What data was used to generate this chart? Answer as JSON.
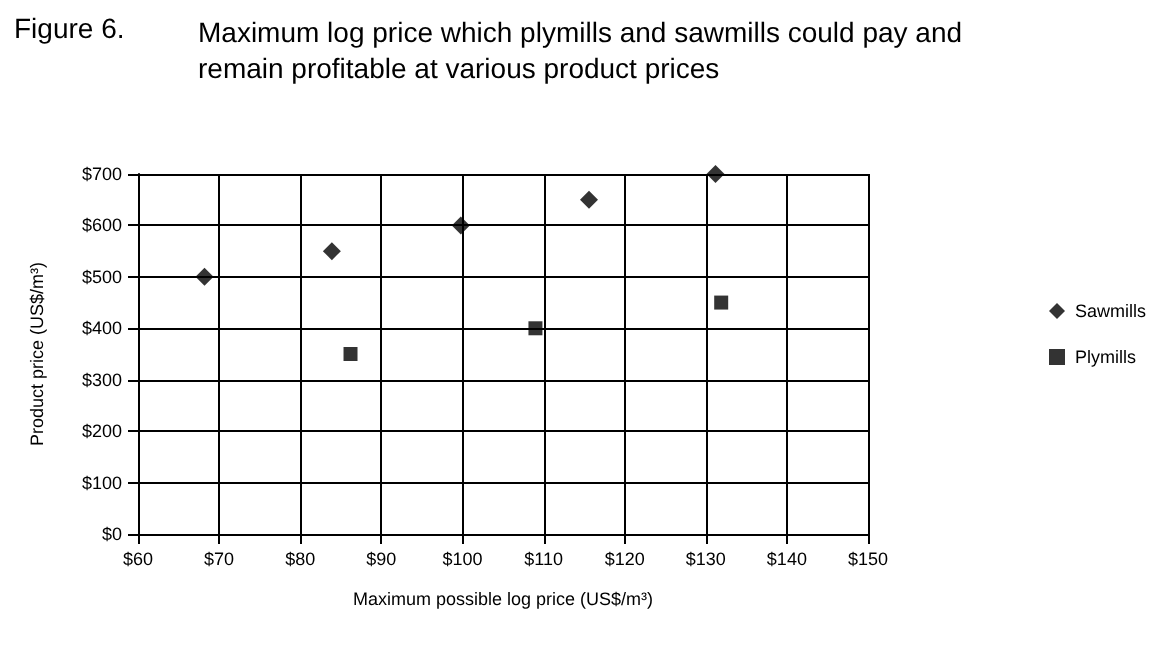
{
  "chart_data": {
    "type": "scatter",
    "title": "Figure 6.",
    "subtitle": "Maximum log price which plymills and sawmills could pay and remain profitable at various product prices",
    "xlabel": "Maximum possible log price (US$/m³)",
    "ylabel": "Product price (US$/m³)",
    "series": [
      {
        "name": "Sawmills",
        "color": "#000000",
        "marker": "diamond",
        "x": [
          68.2,
          83.9,
          99.8,
          115.6,
          131.2
        ],
        "values": [
          500,
          550,
          600,
          650,
          700
        ]
      },
      {
        "name": "Plymills",
        "color": "#000000",
        "marker": "square",
        "x": [
          86.2,
          109.0,
          131.9
        ],
        "values": [
          350,
          400,
          450
        ]
      }
    ],
    "xlim": [
      60,
      150
    ],
    "xticks": [
      {
        "value": 60,
        "label": "$60"
      },
      {
        "value": 70,
        "label": "$70"
      },
      {
        "value": 80,
        "label": "$80"
      },
      {
        "value": 90,
        "label": "$90"
      },
      {
        "value": 100,
        "label": "$100"
      },
      {
        "value": 110,
        "label": "$110"
      },
      {
        "value": 120,
        "label": "$120"
      },
      {
        "value": 130,
        "label": "$130"
      },
      {
        "value": 140,
        "label": "$140"
      },
      {
        "value": 150,
        "label": "$150"
      }
    ],
    "ylim": [
      0,
      700
    ],
    "yticks": [
      {
        "value": 0,
        "label": "$0"
      },
      {
        "value": 100,
        "label": "$100"
      },
      {
        "value": 200,
        "label": "$200"
      },
      {
        "value": 300,
        "label": "$300"
      },
      {
        "value": 400,
        "label": "$400"
      },
      {
        "value": 500,
        "label": "$500"
      },
      {
        "value": 600,
        "label": "$600"
      },
      {
        "value": 700,
        "label": "$700"
      }
    ],
    "grid": true,
    "legend": "right"
  }
}
